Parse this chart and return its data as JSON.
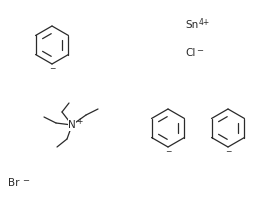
{
  "bg_color": "#ffffff",
  "line_color": "#2a2a2a",
  "text_color": "#2a2a2a",
  "figsize": [
    2.7,
    1.99
  ],
  "dpi": 100,
  "sn_label": "Sn",
  "sn_charge": "4+",
  "cl_label": "Cl",
  "cl_charge": "−",
  "br_label": "Br",
  "br_charge": "−",
  "n_label": "N",
  "n_charge": "+"
}
